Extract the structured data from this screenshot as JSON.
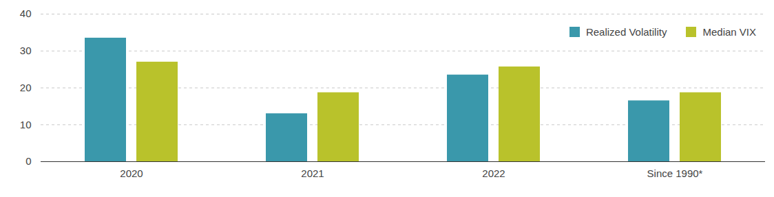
{
  "chart_data": {
    "type": "bar",
    "categories": [
      "2020",
      "2021",
      "2022",
      "Since 1990*"
    ],
    "series": [
      {
        "name": "Realized Volatility",
        "color": "#3a98ab",
        "values": [
          33.5,
          13,
          23.5,
          16.5
        ]
      },
      {
        "name": "Median VIX",
        "color": "#b9c22b",
        "values": [
          27,
          18.7,
          25.7,
          18.7
        ]
      }
    ],
    "ylim": [
      0,
      40
    ],
    "yticks": [
      0,
      10,
      20,
      30,
      40
    ],
    "grid": true,
    "legend": "top-right"
  }
}
